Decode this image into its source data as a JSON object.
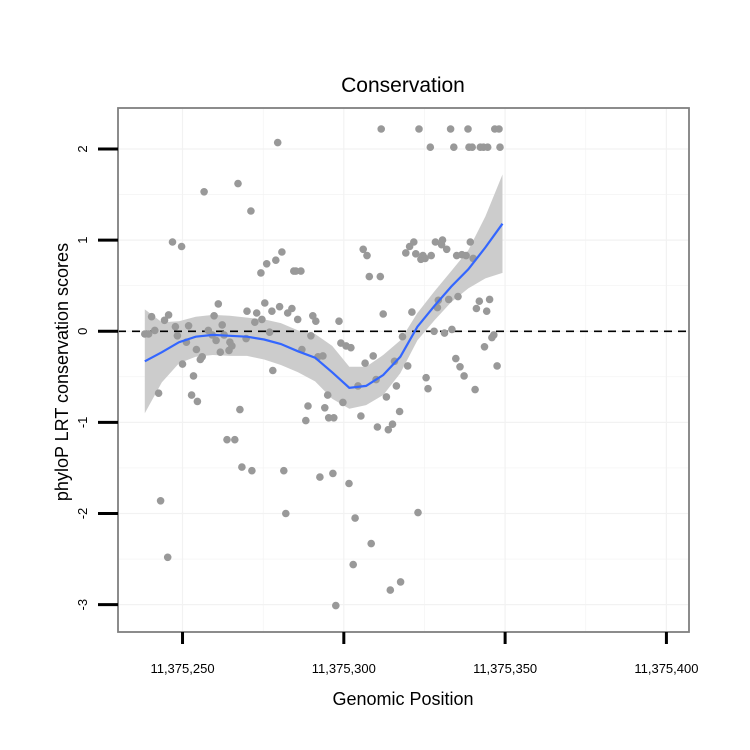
{
  "chart_data": {
    "type": "scatter",
    "title": "Conservation",
    "xlabel": "Genomic Position",
    "ylabel": "phyloP LRT conservation scores",
    "xlim": [
      11375230,
      11375407
    ],
    "ylim": [
      -3.3,
      2.45
    ],
    "x_ticks": [
      11375250,
      11375300,
      11375350,
      11375400
    ],
    "x_tick_labels": [
      "11,375,250",
      "11,375,300",
      "11,375,350",
      "11,375,400"
    ],
    "y_ticks": [
      -3,
      -2,
      -1,
      0,
      1,
      2
    ],
    "y_tick_labels": [
      "-3",
      "-2",
      "-1",
      "0",
      "1",
      "2"
    ],
    "reference_line": {
      "y": 0,
      "style": "dashed"
    },
    "colors": {
      "points": "#999999",
      "smooth": "#3366ff",
      "ribbon": "#cccccc",
      "grid": "#f2f2f2",
      "panel_border": "#808080"
    },
    "points": [
      [
        11375238.3,
        -0.03
      ],
      [
        11375239.5,
        -0.03
      ],
      [
        11375240.4,
        0.16
      ],
      [
        11375241.4,
        0.01
      ],
      [
        11375242.6,
        -0.68
      ],
      [
        11375243.2,
        -1.86
      ],
      [
        11375244.4,
        0.12
      ],
      [
        11375245.4,
        -2.48
      ],
      [
        11375245.7,
        0.18
      ],
      [
        11375246.9,
        0.98
      ],
      [
        11375247.8,
        0.05
      ],
      [
        11375248.4,
        -0.05
      ],
      [
        11375249.7,
        0.93
      ],
      [
        11375250.0,
        -0.36
      ],
      [
        11375251.2,
        -0.12
      ],
      [
        11375251.9,
        0.06
      ],
      [
        11375252.8,
        -0.7
      ],
      [
        11375253.4,
        -0.49
      ],
      [
        11375254.3,
        -0.2
      ],
      [
        11375254.6,
        -0.77
      ],
      [
        11375255.5,
        -0.31
      ],
      [
        11375256.1,
        -0.28
      ],
      [
        11375256.7,
        1.53
      ],
      [
        11375258.0,
        0.01
      ],
      [
        11375259.2,
        -0.04
      ],
      [
        11375259.8,
        0.17
      ],
      [
        11375260.4,
        -0.1
      ],
      [
        11375261.1,
        0.3
      ],
      [
        11375261.7,
        -0.23
      ],
      [
        11375262.3,
        0.07
      ],
      [
        11375262.9,
        -0.04
      ],
      [
        11375263.8,
        -1.19
      ],
      [
        11375264.4,
        -0.21
      ],
      [
        11375264.7,
        -0.12
      ],
      [
        11375265.3,
        -0.16
      ],
      [
        11375266.2,
        -1.19
      ],
      [
        11375267.2,
        1.62
      ],
      [
        11375267.8,
        -0.86
      ],
      [
        11375268.4,
        -1.49
      ],
      [
        11375269.7,
        -0.08
      ],
      [
        11375270.0,
        0.22
      ],
      [
        11375271.2,
        1.32
      ],
      [
        11375271.5,
        -1.53
      ],
      [
        11375272.4,
        0.1
      ],
      [
        11375273.0,
        0.2
      ],
      [
        11375274.3,
        0.64
      ],
      [
        11375274.6,
        0.13
      ],
      [
        11375275.5,
        0.31
      ],
      [
        11375276.1,
        0.74
      ],
      [
        11375277.0,
        -0.01
      ],
      [
        11375277.7,
        0.22
      ],
      [
        11375278.0,
        -0.43
      ],
      [
        11375278.9,
        0.78
      ],
      [
        11375279.5,
        2.07
      ],
      [
        11375280.1,
        0.27
      ],
      [
        11375280.8,
        0.87
      ],
      [
        11375281.4,
        -1.53
      ],
      [
        11375282.0,
        -2.0
      ],
      [
        11375282.6,
        0.2
      ],
      [
        11375283.9,
        0.25
      ],
      [
        11375284.5,
        0.66
      ],
      [
        11375285.1,
        0.66
      ],
      [
        11375285.7,
        0.13
      ],
      [
        11375286.7,
        0.66
      ],
      [
        11375287.0,
        -0.2
      ],
      [
        11375288.2,
        -0.98
      ],
      [
        11375288.9,
        -0.82
      ],
      [
        11375289.8,
        -0.05
      ],
      [
        11375290.4,
        0.17
      ],
      [
        11375291.3,
        0.11
      ],
      [
        11375292.0,
        -0.28
      ],
      [
        11375292.6,
        -1.6
      ],
      [
        11375293.5,
        -0.27
      ],
      [
        11375294.1,
        -0.84
      ],
      [
        11375295.0,
        -0.7
      ],
      [
        11375295.3,
        -0.95
      ],
      [
        11375296.6,
        -1.56
      ],
      [
        11375296.9,
        -0.95
      ],
      [
        11375297.5,
        -3.01
      ],
      [
        11375298.5,
        0.11
      ],
      [
        11375299.1,
        -0.13
      ],
      [
        11375299.7,
        -0.78
      ],
      [
        11375300.7,
        -0.16
      ],
      [
        11375301.6,
        -1.67
      ],
      [
        11375302.2,
        -0.18
      ],
      [
        11375302.9,
        -2.56
      ],
      [
        11375303.5,
        -2.05
      ],
      [
        11375304.4,
        -0.6
      ],
      [
        11375305.3,
        -0.93
      ],
      [
        11375306.0,
        0.9
      ],
      [
        11375306.6,
        -0.35
      ],
      [
        11375307.2,
        0.83
      ],
      [
        11375307.9,
        0.6
      ],
      [
        11375308.5,
        -2.33
      ],
      [
        11375309.1,
        -0.27
      ],
      [
        11375310.0,
        -0.53
      ],
      [
        11375310.4,
        -1.05
      ],
      [
        11375311.3,
        0.6
      ],
      [
        11375311.6,
        2.22
      ],
      [
        11375312.2,
        0.19
      ],
      [
        11375313.2,
        -0.72
      ],
      [
        11375313.8,
        -1.08
      ],
      [
        11375314.4,
        -2.84
      ],
      [
        11375315.1,
        -1.02
      ],
      [
        11375315.7,
        -0.33
      ],
      [
        11375316.3,
        -0.6
      ],
      [
        11375317.3,
        -0.88
      ],
      [
        11375317.6,
        -2.75
      ],
      [
        11375318.2,
        -0.06
      ],
      [
        11375319.2,
        0.86
      ],
      [
        11375319.8,
        -0.38
      ],
      [
        11375320.4,
        0.93
      ],
      [
        11375321.1,
        0.21
      ],
      [
        11375321.7,
        0.98
      ],
      [
        11375322.3,
        0.85
      ],
      [
        11375323.0,
        -1.99
      ],
      [
        11375323.3,
        2.22
      ],
      [
        11375323.9,
        0.79
      ],
      [
        11375324.5,
        0.83
      ],
      [
        11375325.2,
        0.8
      ],
      [
        11375325.5,
        -0.51
      ],
      [
        11375326.1,
        -0.63
      ],
      [
        11375326.8,
        2.02
      ],
      [
        11375327.1,
        0.83
      ],
      [
        11375328.0,
        0.0
      ],
      [
        11375328.4,
        0.98
      ],
      [
        11375329.0,
        0.26
      ],
      [
        11375329.3,
        0.34
      ],
      [
        11375330.3,
        0.95
      ],
      [
        11375330.6,
        1.0
      ],
      [
        11375331.2,
        -0.02
      ],
      [
        11375331.9,
        0.9
      ],
      [
        11375332.5,
        0.35
      ],
      [
        11375333.1,
        2.22
      ],
      [
        11375333.5,
        0.02
      ],
      [
        11375334.1,
        2.02
      ],
      [
        11375334.7,
        -0.3
      ],
      [
        11375335.0,
        0.83
      ],
      [
        11375335.4,
        0.38
      ],
      [
        11375336.0,
        -0.39
      ],
      [
        11375336.6,
        0.84
      ],
      [
        11375337.3,
        -0.49
      ],
      [
        11375337.9,
        0.83
      ],
      [
        11375338.5,
        2.22
      ],
      [
        11375338.8,
        2.02
      ],
      [
        11375339.2,
        0.98
      ],
      [
        11375339.8,
        2.02
      ],
      [
        11375340.1,
        0.8
      ],
      [
        11375340.7,
        -0.64
      ],
      [
        11375341.1,
        0.25
      ],
      [
        11375342.0,
        0.33
      ],
      [
        11375342.3,
        2.02
      ],
      [
        11375343.3,
        2.02
      ],
      [
        11375343.6,
        -0.17
      ],
      [
        11375344.3,
        0.22
      ],
      [
        11375344.6,
        2.02
      ],
      [
        11375345.2,
        0.35
      ],
      [
        11375345.9,
        -0.07
      ],
      [
        11375346.5,
        -0.04
      ],
      [
        11375346.8,
        2.22
      ],
      [
        11375347.5,
        -0.38
      ],
      [
        11375348.1,
        2.22
      ],
      [
        11375348.4,
        2.02
      ]
    ],
    "smooth": {
      "x": [
        11375238.3,
        11375243.6,
        11375248.9,
        11375254.1,
        11375259.4,
        11375264.7,
        11375270.0,
        11375275.3,
        11375280.5,
        11375285.8,
        11375291.1,
        11375296.4,
        11375301.7,
        11375306.9,
        11375312.2,
        11375317.5,
        11375322.8,
        11375328.1,
        11375333.3,
        11375338.6,
        11375343.9,
        11375349.2
      ],
      "y": [
        -0.33,
        -0.23,
        -0.12,
        -0.06,
        -0.04,
        -0.05,
        -0.06,
        -0.09,
        -0.14,
        -0.22,
        -0.29,
        -0.45,
        -0.62,
        -0.6,
        -0.48,
        -0.28,
        0.05,
        0.28,
        0.49,
        0.68,
        0.92,
        1.18
      ],
      "lower": [
        -0.9,
        -0.56,
        -0.35,
        -0.28,
        -0.26,
        -0.27,
        -0.27,
        -0.31,
        -0.37,
        -0.45,
        -0.55,
        -0.74,
        -0.85,
        -0.81,
        -0.7,
        -0.46,
        -0.1,
        0.12,
        0.32,
        0.47,
        0.58,
        0.64
      ],
      "upper": [
        0.24,
        0.1,
        0.11,
        0.16,
        0.18,
        0.17,
        0.15,
        0.13,
        0.09,
        0.01,
        -0.03,
        -0.16,
        -0.39,
        -0.39,
        -0.26,
        -0.1,
        0.2,
        0.44,
        0.66,
        0.89,
        1.26,
        1.72
      ]
    }
  }
}
